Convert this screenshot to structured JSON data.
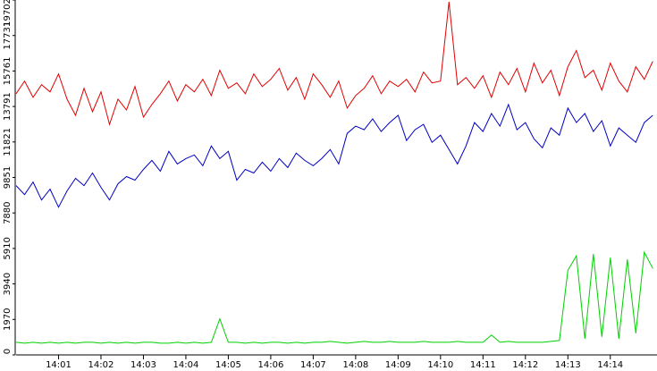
{
  "chart_data": {
    "type": "line",
    "x": [
      0,
      0.2,
      0.4,
      0.6,
      0.8,
      1.0,
      1.2,
      1.4,
      1.6,
      1.8,
      2.0,
      2.2,
      2.4,
      2.6,
      2.8,
      3.0,
      3.2,
      3.4,
      3.6,
      3.8,
      4.0,
      4.2,
      4.4,
      4.6,
      4.8,
      5.0,
      5.2,
      5.4,
      5.6,
      5.8,
      6.0,
      6.2,
      6.4,
      6.6,
      6.8,
      7.0,
      7.2,
      7.4,
      7.6,
      7.8,
      8.0,
      8.2,
      8.4,
      8.6,
      8.8,
      9.0,
      9.2,
      9.4,
      9.6,
      9.8,
      10.0,
      10.2,
      10.4,
      10.6,
      10.8,
      11.0,
      11.2,
      11.4,
      11.6,
      11.8,
      12.0,
      12.2,
      12.4,
      12.6,
      12.8,
      13.0,
      13.2,
      13.4,
      13.6,
      13.8,
      14.0,
      14.2,
      14.4,
      14.6,
      14.8,
      15.0
    ],
    "series": [
      {
        "color": "#e00000",
        "values": [
          14500,
          15200,
          14300,
          15000,
          14600,
          15600,
          14200,
          13300,
          14800,
          13500,
          14600,
          12800,
          14200,
          13600,
          14900,
          13200,
          13900,
          14500,
          15200,
          14100,
          15000,
          14600,
          15300,
          14400,
          15800,
          14800,
          15100,
          14500,
          15600,
          14900,
          15300,
          15900,
          14700,
          15400,
          14200,
          15600,
          15000,
          14300,
          15200,
          13700,
          14400,
          14800,
          15500,
          14500,
          15200,
          14900,
          15300,
          14600,
          15700,
          15100,
          15200,
          19600,
          15000,
          15400,
          14800,
          15500,
          14300,
          15700,
          15000,
          15900,
          14600,
          16200,
          15100,
          15800,
          14400,
          16000,
          16900,
          15400,
          15800,
          14700,
          16200,
          15200,
          14600,
          16000,
          15300,
          16300
        ]
      },
      {
        "color": "#0000c0",
        "values": [
          9400,
          8900,
          9600,
          8600,
          9200,
          8200,
          9100,
          9800,
          9400,
          10100,
          9300,
          8600,
          9500,
          9900,
          9700,
          10300,
          10800,
          10200,
          11300,
          10600,
          10900,
          11100,
          10500,
          11600,
          10900,
          11300,
          9700,
          10300,
          10100,
          10700,
          10200,
          10900,
          10400,
          11200,
          10800,
          10500,
          10900,
          11400,
          10600,
          12300,
          12700,
          12500,
          13100,
          12400,
          12900,
          13300,
          11900,
          12500,
          12800,
          11800,
          12200,
          11400,
          10600,
          11600,
          12900,
          12400,
          13400,
          12700,
          13900,
          12500,
          12900,
          12000,
          11500,
          12600,
          12200,
          13700,
          12900,
          13400,
          12400,
          13000,
          11600,
          12600,
          12200,
          11800,
          12900,
          13300
        ]
      },
      {
        "color": "#00d000",
        "values": [
          700,
          650,
          700,
          650,
          700,
          650,
          700,
          650,
          700,
          700,
          650,
          700,
          650,
          700,
          650,
          700,
          700,
          650,
          650,
          700,
          650,
          700,
          650,
          700,
          2000,
          700,
          700,
          650,
          700,
          650,
          700,
          700,
          650,
          700,
          650,
          700,
          700,
          750,
          700,
          650,
          700,
          750,
          700,
          700,
          750,
          700,
          700,
          700,
          750,
          700,
          700,
          700,
          750,
          700,
          700,
          700,
          1100,
          700,
          750,
          700,
          700,
          700,
          700,
          750,
          800,
          4700,
          5500,
          900,
          5600,
          1000,
          5400,
          900,
          5300,
          1200,
          5700,
          4800
        ]
      }
    ],
    "xlim": [
      0,
      15.1
    ],
    "xticks": [
      {
        "value": 1,
        "label": "14:01"
      },
      {
        "value": 2,
        "label": "14:02"
      },
      {
        "value": 3,
        "label": "14:03"
      },
      {
        "value": 4,
        "label": "14:04"
      },
      {
        "value": 5,
        "label": "14:05"
      },
      {
        "value": 6,
        "label": "14:06"
      },
      {
        "value": 7,
        "label": "14:07"
      },
      {
        "value": 8,
        "label": "14:08"
      },
      {
        "value": 9,
        "label": "14:09"
      },
      {
        "value": 10,
        "label": "14:10"
      },
      {
        "value": 11,
        "label": "14:11"
      },
      {
        "value": 12,
        "label": "14:12"
      },
      {
        "value": 13,
        "label": "14:13"
      },
      {
        "value": 14,
        "label": "14:14"
      }
    ],
    "ylim": [
      0,
      19702
    ],
    "yticks": [
      0,
      1970,
      3940,
      5910,
      7880,
      9851,
      11821,
      13791,
      15761,
      17731,
      19702
    ],
    "grid": false
  }
}
